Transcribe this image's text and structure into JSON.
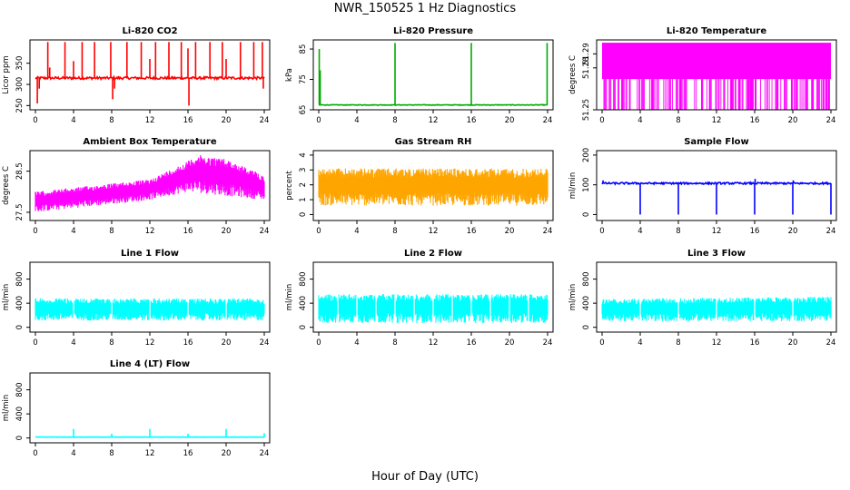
{
  "page": {
    "title": "NWR_150525  1 Hz Diagnostics",
    "x_axis_label": "Hour of Day (UTC)"
  },
  "chart_data": [
    {
      "type": "line",
      "style": "spiky",
      "title": "Li-820 CO2",
      "ylabel": "Licor ppm",
      "color": "#ff0000",
      "xlim": [
        0,
        24
      ],
      "ylim": [
        240,
        405
      ],
      "xticks": [
        0,
        4,
        8,
        12,
        16,
        20,
        24
      ],
      "yticks": [
        250,
        300,
        350
      ],
      "baseline": 315,
      "noise": 3,
      "spikes": [
        [
          0.2,
          255
        ],
        [
          0.4,
          290
        ],
        [
          1.3,
          400
        ],
        [
          1.5,
          340
        ],
        [
          3.1,
          400
        ],
        [
          4.0,
          355
        ],
        [
          4.9,
          400
        ],
        [
          6.2,
          400
        ],
        [
          7.9,
          400
        ],
        [
          8.1,
          265
        ],
        [
          8.3,
          290
        ],
        [
          9.6,
          400
        ],
        [
          11.1,
          400
        ],
        [
          12.0,
          360
        ],
        [
          12.6,
          400
        ],
        [
          14.0,
          400
        ],
        [
          15.3,
          400
        ],
        [
          16.0,
          385
        ],
        [
          16.1,
          250
        ],
        [
          16.8,
          400
        ],
        [
          18.3,
          400
        ],
        [
          19.6,
          400
        ],
        [
          20.0,
          360
        ],
        [
          21.5,
          400
        ],
        [
          22.9,
          400
        ],
        [
          23.8,
          400
        ],
        [
          23.9,
          290
        ]
      ]
    },
    {
      "type": "line",
      "style": "spiky",
      "title": "Li-820 Pressure",
      "ylabel": "kPa",
      "color": "#00aa00",
      "xlim": [
        0,
        24
      ],
      "ylim": [
        65,
        88
      ],
      "xticks": [
        0,
        4,
        8,
        12,
        16,
        20,
        24
      ],
      "yticks": [
        65,
        75,
        85
      ],
      "baseline": 66.6,
      "noise": 0.1,
      "spikes": [
        [
          0.05,
          85
        ],
        [
          0.15,
          78
        ],
        [
          8.0,
          87
        ],
        [
          16.0,
          87
        ],
        [
          23.95,
          87
        ]
      ]
    },
    {
      "type": "line",
      "style": "bars",
      "title": "Li-820 Temperature",
      "ylabel": "degrees C",
      "color": "#ff00ff",
      "xlim": [
        0,
        24
      ],
      "ylim": [
        51.25,
        51.3
      ],
      "xticks": [
        0,
        4,
        8,
        12,
        16,
        20,
        24
      ],
      "yticks": [
        51.25,
        51.28,
        51.29
      ],
      "top": 51.298,
      "level": 51.272,
      "drops": [
        2.1,
        5.3,
        8.2,
        10.5,
        11.3,
        12.8,
        13.6,
        14.4,
        15.3,
        15.6,
        15.8,
        16.1,
        18.4,
        19.2,
        19.9,
        20.4,
        21.5,
        22.1,
        23.2,
        23.5,
        23.8
      ]
    },
    {
      "type": "line",
      "style": "band",
      "title": "Ambient Box Temperature",
      "ylabel": "degrees C",
      "color": "#ff00ff",
      "xlim": [
        0,
        24
      ],
      "ylim": [
        27.3,
        29.0
      ],
      "xticks": [
        0,
        4,
        8,
        12,
        16,
        20,
        24
      ],
      "yticks": [
        27.5,
        28.5
      ],
      "lower": [
        [
          0,
          27.5
        ],
        [
          4,
          27.6
        ],
        [
          8,
          27.7
        ],
        [
          12,
          27.8
        ],
        [
          16,
          28.0
        ],
        [
          20,
          27.9
        ],
        [
          24,
          27.8
        ]
      ],
      "upper": [
        [
          0,
          28.0
        ],
        [
          4,
          28.1
        ],
        [
          8,
          28.2
        ],
        [
          12,
          28.3
        ],
        [
          16,
          28.75
        ],
        [
          17,
          28.9
        ],
        [
          20,
          28.8
        ],
        [
          24,
          28.4
        ]
      ]
    },
    {
      "type": "line",
      "style": "band",
      "title": "Gas Stream RH",
      "ylabel": "percent",
      "color": "#ffa500",
      "xlim": [
        0,
        24
      ],
      "ylim": [
        -0.4,
        4.3
      ],
      "xticks": [
        0,
        4,
        8,
        12,
        16,
        20,
        24
      ],
      "yticks": [
        0,
        1,
        2,
        3,
        4
      ],
      "lower": [
        [
          0,
          0.6
        ],
        [
          24,
          0.6
        ]
      ],
      "upper": [
        [
          0,
          3.1
        ],
        [
          24,
          3.1
        ]
      ]
    },
    {
      "type": "line",
      "style": "spiky",
      "title": "Sample Flow",
      "ylabel": "ml/min",
      "color": "#0000ff",
      "xlim": [
        0,
        24
      ],
      "ylim": [
        -20,
        215
      ],
      "xticks": [
        0,
        4,
        8,
        12,
        16,
        20,
        24
      ],
      "yticks": [
        0,
        100,
        200
      ],
      "baseline": 105,
      "noise": 3,
      "spikes": [
        [
          0.1,
          115
        ],
        [
          4.0,
          0
        ],
        [
          8.0,
          0
        ],
        [
          12.0,
          0
        ],
        [
          16.0,
          0
        ],
        [
          16.05,
          120
        ],
        [
          20.0,
          0
        ],
        [
          20.05,
          115
        ],
        [
          24.0,
          0
        ]
      ]
    },
    {
      "type": "line",
      "style": "band",
      "title": "Line 1 Flow",
      "ylabel": "ml/min",
      "color": "#00ffff",
      "xlim": [
        0,
        24
      ],
      "ylim": [
        -80,
        1080
      ],
      "xticks": [
        0,
        4,
        8,
        12,
        16,
        20,
        24
      ],
      "yticks": [
        0,
        400,
        800
      ],
      "lower": [
        [
          0,
          110
        ],
        [
          24,
          110
        ]
      ],
      "upper": [
        [
          0,
          480
        ],
        [
          24,
          480
        ]
      ],
      "gaps": [
        4.0,
        8.0,
        12.0,
        16.0,
        20.0
      ]
    },
    {
      "type": "line",
      "style": "band",
      "title": "Line 2 Flow",
      "ylabel": "ml/min",
      "color": "#00ffff",
      "xlim": [
        0,
        24
      ],
      "ylim": [
        -80,
        1080
      ],
      "xticks": [
        0,
        4,
        8,
        12,
        16,
        20,
        24
      ],
      "yticks": [
        0,
        400,
        800
      ],
      "lower": [
        [
          0,
          70
        ],
        [
          24,
          70
        ]
      ],
      "upper": [
        [
          0,
          550
        ],
        [
          24,
          550
        ]
      ],
      "gaps": [
        2.0,
        4.0,
        6.0,
        8.0,
        10.0,
        12.0,
        14.0,
        16.0,
        18.0,
        20.0,
        22.0
      ]
    },
    {
      "type": "line",
      "style": "band",
      "title": "Line 3 Flow",
      "ylabel": "ml/min",
      "color": "#00ffff",
      "xlim": [
        0,
        24
      ],
      "ylim": [
        -80,
        1080
      ],
      "xticks": [
        0,
        4,
        8,
        12,
        16,
        20,
        24
      ],
      "yticks": [
        0,
        400,
        800
      ],
      "lower": [
        [
          0,
          100
        ],
        [
          24,
          100
        ]
      ],
      "upper": [
        [
          0,
          470
        ],
        [
          24,
          510
        ]
      ],
      "gaps": [
        4.0,
        8.0,
        12.0,
        16.0,
        20.0
      ]
    },
    {
      "type": "line",
      "style": "spiky",
      "title": "Line 4 (LT) Flow",
      "ylabel": "ml/min",
      "color": "#00ffff",
      "xlim": [
        0,
        24
      ],
      "ylim": [
        -80,
        1080
      ],
      "xticks": [
        0,
        4,
        8,
        12,
        16,
        20,
        24
      ],
      "yticks": [
        0,
        400,
        800
      ],
      "baseline": 15,
      "noise": 2,
      "spikes": [
        [
          4.0,
          150
        ],
        [
          8.0,
          70
        ],
        [
          12.0,
          150
        ],
        [
          16.0,
          70
        ],
        [
          20.0,
          150
        ],
        [
          24.0,
          80
        ]
      ]
    }
  ]
}
